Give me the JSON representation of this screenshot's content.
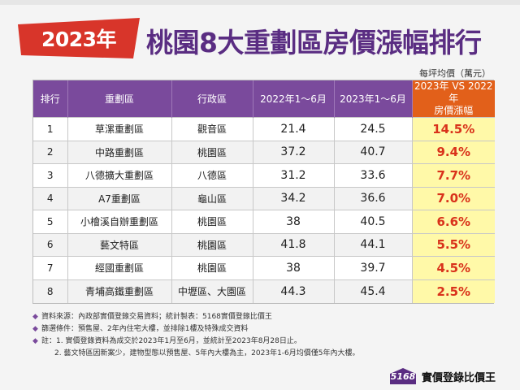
{
  "header": {
    "year_label": "2023年",
    "title": "桃園8大重劃區房價漲幅排行",
    "unit_note": "每坪均價（萬元）",
    "colors": {
      "badge": "#d8352a",
      "title": "#5a2d82"
    }
  },
  "table": {
    "columns": [
      "排行",
      "重劃區",
      "行政區",
      "2022年1～6月",
      "2023年1～6月"
    ],
    "highlight_column": {
      "line1": "2023年 VS 2022年",
      "line2": "房價漲幅"
    },
    "rows": [
      {
        "rank": "1",
        "zone": "草漯重劃區",
        "district": "觀音區",
        "price_2022": "21.4",
        "price_2023": "24.5",
        "growth": "14.5%"
      },
      {
        "rank": "2",
        "zone": "中路重劃區",
        "district": "桃園區",
        "price_2022": "37.2",
        "price_2023": "40.7",
        "growth": "9.4%"
      },
      {
        "rank": "3",
        "zone": "八德擴大重劃區",
        "district": "八德區",
        "price_2022": "31.2",
        "price_2023": "33.6",
        "growth": "7.7%"
      },
      {
        "rank": "4",
        "zone": "A7重劃區",
        "district": "龜山區",
        "price_2022": "34.2",
        "price_2023": "36.6",
        "growth": "7.0%"
      },
      {
        "rank": "5",
        "zone": "小檜溪自辦重劃區",
        "district": "桃園區",
        "price_2022": "38",
        "price_2023": "40.5",
        "growth": "6.6%"
      },
      {
        "rank": "6",
        "zone": "藝文特區",
        "district": "桃園區",
        "price_2022": "41.8",
        "price_2023": "44.1",
        "growth": "5.5%"
      },
      {
        "rank": "7",
        "zone": "經國重劃區",
        "district": "桃園區",
        "price_2022": "38",
        "price_2023": "39.7",
        "growth": "4.5%"
      },
      {
        "rank": "8",
        "zone": "青埔高鐵重劃區",
        "district": "中壢區、大園區",
        "price_2022": "44.3",
        "price_2023": "45.4",
        "growth": "2.5%"
      }
    ]
  },
  "footnotes": {
    "source": "資料來源：內政部實價登錄交易資料；統計製表：5168實價登錄比價王",
    "criteria": "篩選條件：預售屋、2年內住宅大樓，並排除1樓及特殊成交資料",
    "note1": "註：1. 實價登錄資料為成交於2023年1月至6月，並統計至2023年8月28日止。",
    "note2": "2. 藝文特區因新案少，建物型態以預售屋、5年內大樓為主，2023年1-6月均價僅5年內大樓。"
  },
  "logo": {
    "number": "5168",
    "name": "實價登錄比價王"
  }
}
